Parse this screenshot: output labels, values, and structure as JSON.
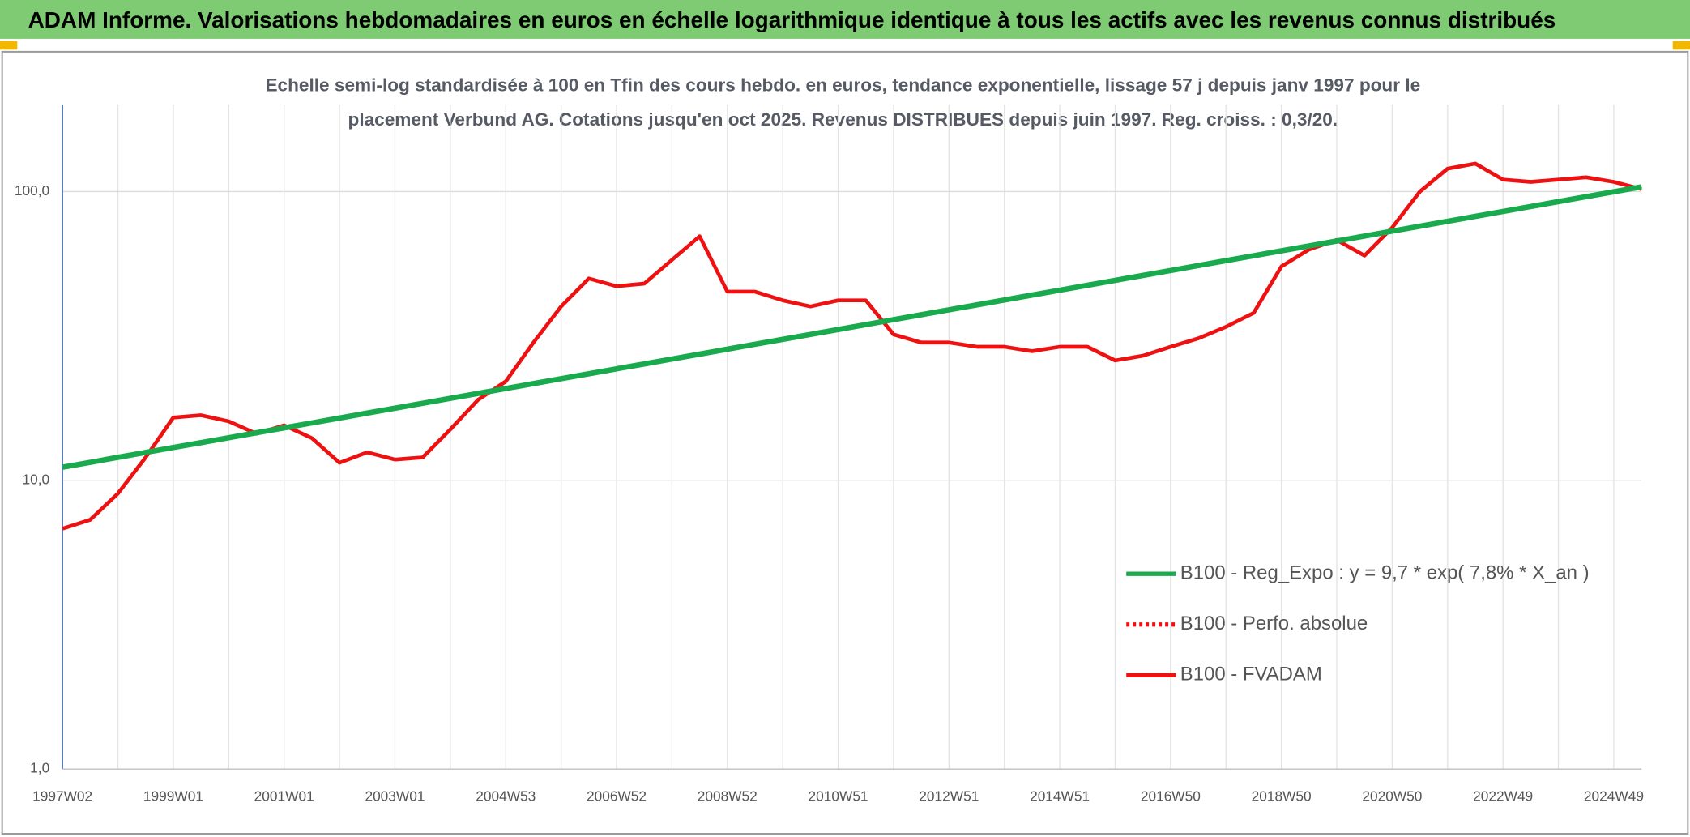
{
  "chart_data": {
    "type": "line",
    "header": "ADAM Informe. Valorisations hebdomadaires en euros en échelle logarithmique identique à tous les actifs avec les revenus connus distribués",
    "subtitle": [
      "Echelle semi-log standardisée à 100 en Tfin des cours hebdo. en euros, tendance exponentielle, lissage 57 j depuis janv 1997 pour le",
      "placement Verbund AG. Cotations jusqu'en oct 2025. Revenus DISTRIBUES depuis juin 1997. Reg. croiss. : 0,3/20."
    ],
    "categories": [
      "1997W02",
      null,
      null,
      null,
      "1999W01",
      null,
      null,
      null,
      "2001W01",
      null,
      null,
      null,
      "2003W01",
      null,
      null,
      null,
      "2004W53",
      null,
      null,
      null,
      "2006W52",
      null,
      null,
      null,
      "2008W52",
      null,
      null,
      null,
      "2010W51",
      null,
      null,
      null,
      "2012W51",
      null,
      null,
      null,
      "2014W51",
      null,
      null,
      null,
      "2016W50",
      null,
      null,
      null,
      "2018W50",
      null,
      null,
      null,
      "2020W50",
      null,
      null,
      null,
      "2022W49",
      null,
      null,
      null,
      "2024W49",
      null
    ],
    "yscale": "log",
    "ylim": [
      1,
      200
    ],
    "yticks": [
      {
        "value": 1,
        "label": "1,0"
      },
      {
        "value": 10,
        "label": "10,0"
      },
      {
        "value": 100,
        "label": "100,0"
      }
    ],
    "grid": true,
    "legend": "right",
    "series": [
      {
        "name": "B100 - Reg_Expo : y = 9,7 * exp( 7,8% *  X_an )",
        "color": "#1aaa4e",
        "linestyle": "solid",
        "values": [
          11.1,
          11.54,
          12.01,
          12.49,
          12.99,
          13.5,
          14.04,
          14.61,
          15.19,
          15.8,
          16.43,
          17.09,
          17.77,
          18.48,
          19.22,
          19.99,
          20.79,
          21.62,
          22.48,
          23.38,
          24.32,
          25.29,
          26.3,
          27.35,
          28.45,
          29.59,
          30.77,
          32.0,
          33.28,
          34.61,
          36.0,
          37.44,
          38.93,
          40.49,
          42.11,
          43.8,
          45.55,
          47.37,
          49.26,
          51.23,
          53.28,
          55.42,
          57.63,
          59.94,
          62.34,
          64.83,
          67.42,
          70.12,
          72.92,
          75.84,
          78.88,
          82.03,
          85.31,
          88.73,
          92.28,
          95.97,
          99.81,
          103.8
        ]
      },
      {
        "name": "B100 - Perfo. absolue",
        "color": "#ee1111",
        "linestyle": "dotted",
        "values": [
          null,
          null,
          null,
          null,
          null,
          null,
          null,
          null,
          null,
          null,
          null,
          null,
          null,
          null,
          null,
          null,
          null,
          null,
          null,
          null,
          null,
          null,
          null,
          null,
          null,
          null,
          null,
          null,
          null,
          null,
          null,
          null,
          null,
          null,
          null,
          null,
          null,
          null,
          null,
          null,
          null,
          null,
          null,
          null,
          null,
          null,
          null,
          null,
          null,
          null,
          null,
          null,
          null,
          null,
          null,
          null,
          null,
          null
        ]
      },
      {
        "name": "B100 - FVADAM",
        "color": "#ee1111",
        "linestyle": "solid",
        "values": [
          6.8,
          7.3,
          9.0,
          12.0,
          16.5,
          16.8,
          16.0,
          14.5,
          15.5,
          14.0,
          11.5,
          12.5,
          11.8,
          12.0,
          15.0,
          19.0,
          22,
          30,
          40,
          50,
          47,
          48,
          58,
          70,
          45,
          45,
          42,
          40,
          42,
          42,
          32,
          30,
          30,
          29,
          29,
          28,
          29,
          29,
          26,
          27,
          29,
          31,
          34,
          38,
          55,
          63,
          68,
          60,
          75,
          100,
          120,
          125,
          110,
          108,
          110,
          112,
          108,
          102
        ]
      }
    ]
  }
}
